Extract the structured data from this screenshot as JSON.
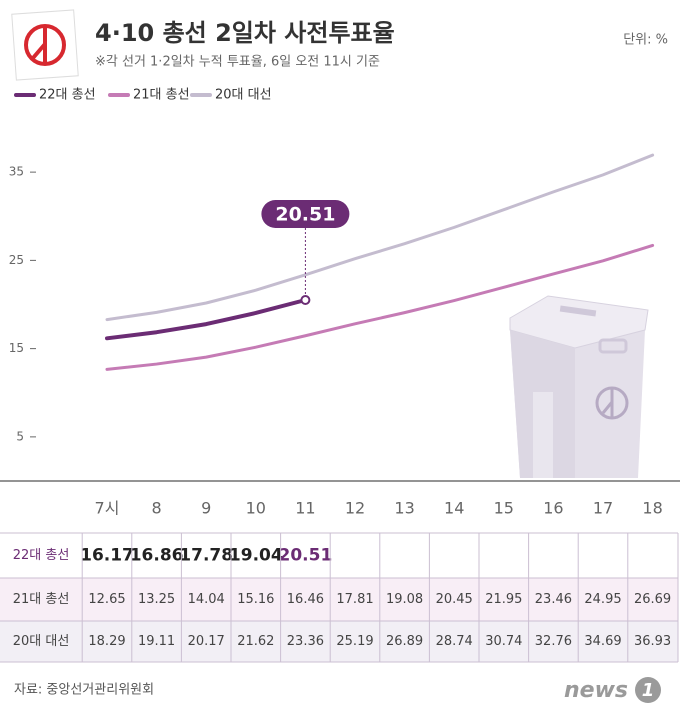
{
  "chart_data": {
    "type": "line",
    "title": "4·10 총선 2일차 사전투표율",
    "subtitle": "※각 선거 1·2일차 누적 투표율, 6일 오전 11시 기준",
    "unit": "단위: %",
    "source": "자료: 중앙선거관리위원회",
    "logo": {
      "text": "news",
      "mark": "1"
    },
    "categories": [
      "7시",
      "8",
      "9",
      "10",
      "11",
      "12",
      "13",
      "14",
      "15",
      "16",
      "17",
      "18"
    ],
    "series": [
      {
        "name": "22대 총선",
        "color": "#6b2c74",
        "values": [
          16.17,
          16.86,
          17.78,
          19.04,
          20.51,
          null,
          null,
          null,
          null,
          null,
          null,
          null
        ]
      },
      {
        "name": "21대 총선",
        "color": "#c57bb5",
        "values": [
          12.65,
          13.25,
          14.04,
          15.16,
          16.46,
          17.81,
          19.08,
          20.45,
          21.95,
          23.46,
          24.95,
          26.69
        ]
      },
      {
        "name": "20대 대선",
        "color": "#c4bccf",
        "values": [
          18.29,
          19.11,
          20.17,
          21.62,
          23.36,
          25.19,
          26.89,
          28.74,
          30.74,
          32.76,
          34.69,
          36.93
        ]
      }
    ],
    "ylim": [
      0,
      40
    ],
    "yticks": [
      5,
      15,
      25,
      35
    ],
    "grid": false
  }
}
